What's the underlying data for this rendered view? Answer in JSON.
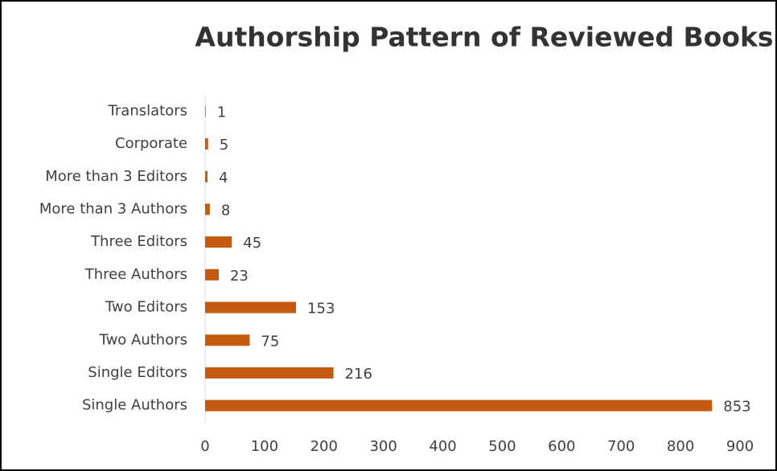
{
  "chart_data": {
    "type": "bar",
    "orientation": "horizontal",
    "title": "Authorship Pattern of Reviewed Books",
    "categories": [
      "Translators",
      "Corporate",
      "More than 3 Editors",
      "More than 3 Authors",
      "Three Editors",
      "Three Authors",
      "Two Editors",
      "Two Authors",
      "Single Editors",
      "Single Authors"
    ],
    "values": [
      1,
      5,
      4,
      8,
      45,
      23,
      153,
      75,
      216,
      853
    ],
    "color": "#c55a11",
    "xlim": [
      0,
      900
    ],
    "xticks": [
      0,
      100,
      200,
      300,
      400,
      500,
      600,
      700,
      800,
      900
    ],
    "grid": false
  }
}
